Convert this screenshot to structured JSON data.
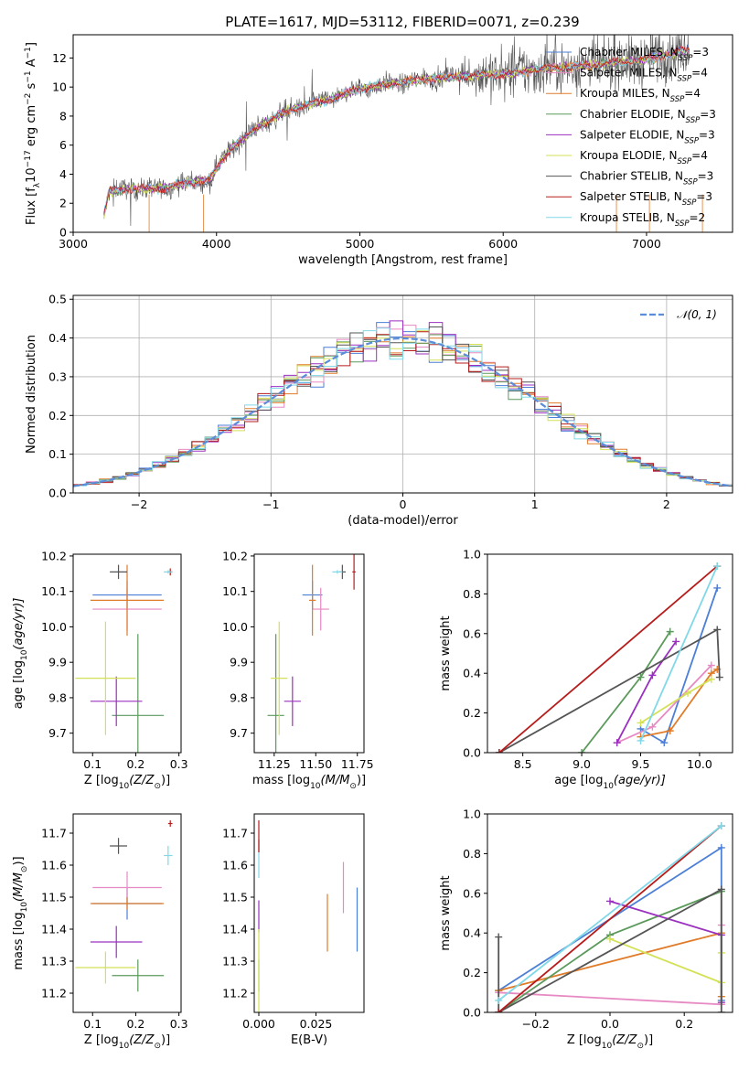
{
  "figure": {
    "title": "PLATE=1617, MJD=53112, FIBERID=0071, z=0.239"
  },
  "series_styles": [
    {
      "name": "Chabrier MILES",
      "nssp": "3",
      "color": "#4c7fd6"
    },
    {
      "name": "Salpeter MILES",
      "nssp": "4",
      "color": "#e78ac3"
    },
    {
      "name": "Kroupa MILES",
      "nssp": "4",
      "color": "#e07b2a"
    },
    {
      "name": "Chabrier ELODIE",
      "nssp": "3",
      "color": "#5b9a5b"
    },
    {
      "name": "Salpeter ELODIE",
      "nssp": "3",
      "color": "#9b30c0"
    },
    {
      "name": "Kroupa ELODIE",
      "nssp": "4",
      "color": "#d4e157"
    },
    {
      "name": "Chabrier STELIB",
      "nssp": "3",
      "color": "#555555"
    },
    {
      "name": "Salpeter STELIB",
      "nssp": "3",
      "color": "#b71c1c"
    },
    {
      "name": "Kroupa STELIB",
      "nssp": "2",
      "color": "#80d8e8"
    }
  ],
  "chart_data": [
    {
      "id": "spectrum",
      "type": "line",
      "xlabel": "wavelength [Angstrom, rest frame]",
      "ylabel_parts": [
        "Flux [f",
        "λ",
        "10",
        "−17",
        " erg cm",
        "−2",
        " s",
        "−1",
        " A",
        "−1",
        "]"
      ],
      "xlim": [
        3000,
        7600
      ],
      "ylim": [
        0,
        13.6
      ],
      "xticks": [
        3000,
        4000,
        5000,
        6000,
        7000
      ],
      "yticks": [
        0,
        2,
        4,
        6,
        8,
        10,
        12
      ],
      "legend": "top-right",
      "grid": false,
      "continuum_knots": {
        "x": [
          3200,
          3250,
          3400,
          3600,
          3800,
          3950,
          4000,
          4100,
          4300,
          4500,
          4800,
          5000,
          5200,
          5500,
          5800,
          6000,
          6300,
          6600,
          7000,
          7300
        ],
        "y": [
          0.5,
          2.8,
          3.0,
          3.0,
          3.4,
          3.6,
          4.4,
          5.8,
          7.3,
          8.4,
          9.2,
          9.9,
          10.2,
          10.6,
          10.8,
          10.9,
          11.3,
          11.5,
          11.9,
          12.6
        ]
      }
    },
    {
      "id": "residuals",
      "type": "line",
      "xlabel": "(data-model)/error",
      "ylabel": "Normed distribution",
      "xlim": [
        -2.5,
        2.5
      ],
      "ylim": [
        0,
        0.51
      ],
      "xticks": [
        -2,
        -1,
        0,
        1,
        2
      ],
      "yticks": [
        0.0,
        0.1,
        0.2,
        0.3,
        0.4,
        0.5
      ],
      "legend": "top-right",
      "legend_label": "𝒩(0, 1)",
      "grid": true
    },
    {
      "id": "age-vs-Z",
      "type": "scatter",
      "xlabel_parts": [
        "Z [log",
        "10",
        "(Z/Z",
        "⊙",
        ")]"
      ],
      "ylabel_parts": [
        "age  [log",
        "10",
        "(age/yr)]"
      ],
      "xlim": [
        0.055,
        0.305
      ],
      "ylim": [
        9.645,
        10.205
      ],
      "xticks": [
        0.1,
        0.2,
        0.3
      ],
      "yticks": [
        9.7,
        9.8,
        9.9,
        10.0,
        10.1,
        10.2
      ],
      "points": [
        {
          "s": 0,
          "x": 0.18,
          "y": 10.09,
          "xe": 0.08,
          "ye": 0.04
        },
        {
          "s": 1,
          "x": 0.18,
          "y": 10.05,
          "xe": 0.08,
          "ye": 0.06
        },
        {
          "s": 2,
          "x": 0.18,
          "y": 10.075,
          "xe": 0.085,
          "ye": 0.1
        },
        {
          "s": 3,
          "x": 0.205,
          "y": 9.75,
          "xe": 0.06,
          "ye": 0.23
        },
        {
          "s": 4,
          "x": 0.155,
          "y": 9.79,
          "xe": 0.06,
          "ye": 0.07
        },
        {
          "s": 5,
          "x": 0.13,
          "y": 9.855,
          "xe": 0.07,
          "ye": 0.16
        },
        {
          "s": 6,
          "x": 0.16,
          "y": 10.155,
          "xe": 0.02,
          "ye": 0.02
        },
        {
          "s": 7,
          "x": 0.28,
          "y": 10.155,
          "xe": 0.005,
          "ye": 0.01
        },
        {
          "s": 8,
          "x": 0.275,
          "y": 10.155,
          "xe": 0.01,
          "ye": 0.005
        }
      ]
    },
    {
      "id": "age-vs-mass",
      "type": "scatter",
      "xlabel_parts": [
        "mass [log",
        "10",
        "(M/M",
        "⊙",
        ")]"
      ],
      "ylabel": "",
      "xlim": [
        11.13,
        11.79
      ],
      "ylim": [
        9.645,
        10.205
      ],
      "xticks": [
        11.25,
        11.5,
        11.75
      ],
      "yticks": [
        9.7,
        9.8,
        9.9,
        10.0,
        10.1,
        10.2
      ],
      "points": [
        {
          "s": 0,
          "x": 11.48,
          "y": 10.09,
          "xe": 0.06,
          "ye": 0.04
        },
        {
          "s": 1,
          "x": 11.53,
          "y": 10.05,
          "xe": 0.05,
          "ye": 0.06
        },
        {
          "s": 2,
          "x": 11.48,
          "y": 10.075,
          "xe": 0.02,
          "ye": 0.1
        },
        {
          "s": 3,
          "x": 11.26,
          "y": 9.75,
          "xe": 0.05,
          "ye": 0.23
        },
        {
          "s": 4,
          "x": 11.36,
          "y": 9.79,
          "xe": 0.05,
          "ye": 0.07
        },
        {
          "s": 5,
          "x": 11.28,
          "y": 9.855,
          "xe": 0.05,
          "ye": 0.16
        },
        {
          "s": 6,
          "x": 11.66,
          "y": 10.155,
          "xe": 0.02,
          "ye": 0.02
        },
        {
          "s": 7,
          "x": 11.73,
          "y": 10.155,
          "xe": 0.01,
          "ye": 0.05
        },
        {
          "s": 8,
          "x": 11.63,
          "y": 10.155,
          "xe": 0.03,
          "ye": 0.005
        }
      ]
    },
    {
      "id": "weight-vs-age",
      "type": "line",
      "xlabel_parts": [
        "age  [log",
        "10",
        "(age/yr)]"
      ],
      "ylabel": "mass weight",
      "xlim": [
        8.2,
        10.28
      ],
      "ylim": [
        0,
        1.0
      ],
      "xticks": [
        8.5,
        9.0,
        9.5,
        10.0
      ],
      "yticks": [
        0.0,
        0.2,
        0.4,
        0.6,
        0.8,
        1.0
      ],
      "series": [
        {
          "s": 0,
          "x": [
            9.5,
            9.7,
            10.15
          ],
          "y": [
            0.12,
            0.05,
            0.83
          ]
        },
        {
          "s": 1,
          "x": [
            9.3,
            9.6,
            10.1
          ],
          "y": [
            0.05,
            0.13,
            0.44
          ]
        },
        {
          "s": 2,
          "x": [
            9.5,
            9.75,
            10.1,
            10.15
          ],
          "y": [
            0.08,
            0.11,
            0.4,
            0.42
          ]
        },
        {
          "s": 3,
          "x": [
            9.0,
            9.5,
            9.75
          ],
          "y": [
            0.0,
            0.38,
            0.61
          ]
        },
        {
          "s": 4,
          "x": [
            9.3,
            9.6,
            9.8
          ],
          "y": [
            0.05,
            0.39,
            0.56
          ]
        },
        {
          "s": 5,
          "x": [
            9.5,
            9.9,
            10.1
          ],
          "y": [
            0.15,
            0.3,
            0.37
          ]
        },
        {
          "s": 6,
          "x": [
            8.3,
            10.15,
            10.17
          ],
          "y": [
            0.0,
            0.62,
            0.38
          ]
        },
        {
          "s": 7,
          "x": [
            8.3,
            10.15
          ],
          "y": [
            0.0,
            0.94
          ]
        },
        {
          "s": 8,
          "x": [
            9.5,
            10.15
          ],
          "y": [
            0.06,
            0.94
          ]
        }
      ]
    },
    {
      "id": "mass-vs-Z",
      "type": "scatter",
      "xlabel_parts": [
        "Z [log",
        "10",
        "(Z/Z",
        "⊙",
        ")]"
      ],
      "ylabel_parts": [
        "mass [log",
        "10",
        "(M/M",
        "⊙",
        ")]"
      ],
      "xlim": [
        0.055,
        0.305
      ],
      "ylim": [
        11.14,
        11.76
      ],
      "xticks": [
        0.1,
        0.2,
        0.3
      ],
      "yticks": [
        11.2,
        11.3,
        11.4,
        11.5,
        11.6,
        11.7
      ],
      "points": [
        {
          "s": 0,
          "x": 0.18,
          "y": 11.48,
          "xe": 0.08,
          "ye": 0.05
        },
        {
          "s": 1,
          "x": 0.18,
          "y": 11.53,
          "xe": 0.08,
          "ye": 0.05
        },
        {
          "s": 2,
          "x": 0.18,
          "y": 11.48,
          "xe": 0.085,
          "ye": 0.02
        },
        {
          "s": 3,
          "x": 0.205,
          "y": 11.255,
          "xe": 0.06,
          "ye": 0.05
        },
        {
          "s": 4,
          "x": 0.155,
          "y": 11.36,
          "xe": 0.06,
          "ye": 0.05
        },
        {
          "s": 5,
          "x": 0.13,
          "y": 11.28,
          "xe": 0.07,
          "ye": 0.05
        },
        {
          "s": 6,
          "x": 0.16,
          "y": 11.66,
          "xe": 0.02,
          "ye": 0.025
        },
        {
          "s": 7,
          "x": 0.28,
          "y": 11.73,
          "xe": 0.005,
          "ye": 0.01
        },
        {
          "s": 8,
          "x": 0.275,
          "y": 11.63,
          "xe": 0.01,
          "ye": 0.03
        }
      ]
    },
    {
      "id": "mass-vs-EBV",
      "type": "scatter",
      "xlabel": "E(B-V)",
      "ylabel": "",
      "xlim": [
        -0.002,
        0.046
      ],
      "ylim": [
        11.14,
        11.76
      ],
      "xticks": [
        0.0,
        0.025
      ],
      "xtick_labels": [
        "0.000",
        "0.025"
      ],
      "yticks": [
        11.2,
        11.3,
        11.4,
        11.5,
        11.6,
        11.7
      ],
      "points": [
        {
          "s": 0,
          "x": 0.043,
          "y": 11.43,
          "xe": 0,
          "ye": 0.1
        },
        {
          "s": 1,
          "x": 0.037,
          "y": 11.53,
          "xe": 0,
          "ye": 0.08
        },
        {
          "s": 2,
          "x": 0.03,
          "y": 11.42,
          "xe": 0,
          "ye": 0.09
        },
        {
          "s": 3,
          "x": 0.0,
          "y": 11.255,
          "xe": 0,
          "ye": 0.05
        },
        {
          "s": 4,
          "x": 0.0,
          "y": 11.44,
          "xe": 0,
          "ye": 0.05
        },
        {
          "s": 5,
          "x": 0.0,
          "y": 11.26,
          "xe": 0,
          "ye": 0.14
        },
        {
          "s": 6,
          "x": 0.0,
          "y": 11.66,
          "xe": 0,
          "ye": 0.02
        },
        {
          "s": 7,
          "x": 0.0,
          "y": 11.69,
          "xe": 0,
          "ye": 0.05
        },
        {
          "s": 8,
          "x": 0.0,
          "y": 11.6,
          "xe": 0,
          "ye": 0.04
        }
      ]
    },
    {
      "id": "weight-vs-Z",
      "type": "line",
      "xlabel_parts": [
        "Z [log",
        "10",
        "(Z/Z",
        "⊙",
        ")]"
      ],
      "ylabel": "mass weight",
      "xlim": [
        -0.33,
        0.33
      ],
      "ylim": [
        0,
        1.0
      ],
      "xticks": [
        -0.2,
        0.0,
        0.2
      ],
      "xtick_labels": [
        "−0.2",
        "0.0",
        "0.2"
      ],
      "yticks": [
        0.0,
        0.2,
        0.4,
        0.6,
        0.8,
        1.0
      ],
      "series": [
        {
          "s": 0,
          "x": [
            -0.3,
            0.3,
            0.3
          ],
          "y": [
            0.11,
            0.83,
            0.06
          ]
        },
        {
          "s": 1,
          "x": [
            -0.3,
            0.3,
            0.3
          ],
          "y": [
            0.1,
            0.04,
            0.44
          ]
        },
        {
          "s": 2,
          "x": [
            -0.3,
            0.3,
            0.3
          ],
          "y": [
            0.11,
            0.4,
            0.08
          ]
        },
        {
          "s": 3,
          "x": [
            -0.3,
            0.0,
            0.3
          ],
          "y": [
            0.0,
            0.39,
            0.61
          ]
        },
        {
          "s": 4,
          "x": [
            0.0,
            0.3,
            0.3
          ],
          "y": [
            0.56,
            0.39,
            0.05
          ]
        },
        {
          "s": 5,
          "x": [
            0.0,
            0.3,
            0.3
          ],
          "y": [
            0.37,
            0.15,
            0.3
          ]
        },
        {
          "s": 6,
          "x": [
            -0.3,
            -0.3,
            0.3,
            0.3
          ],
          "y": [
            0.38,
            0.0,
            0.62,
            0.0
          ]
        },
        {
          "s": 7,
          "x": [
            -0.3,
            0.3
          ],
          "y": [
            0.0,
            0.94
          ]
        },
        {
          "s": 8,
          "x": [
            -0.3,
            0.3
          ],
          "y": [
            0.06,
            0.94
          ]
        }
      ]
    }
  ]
}
